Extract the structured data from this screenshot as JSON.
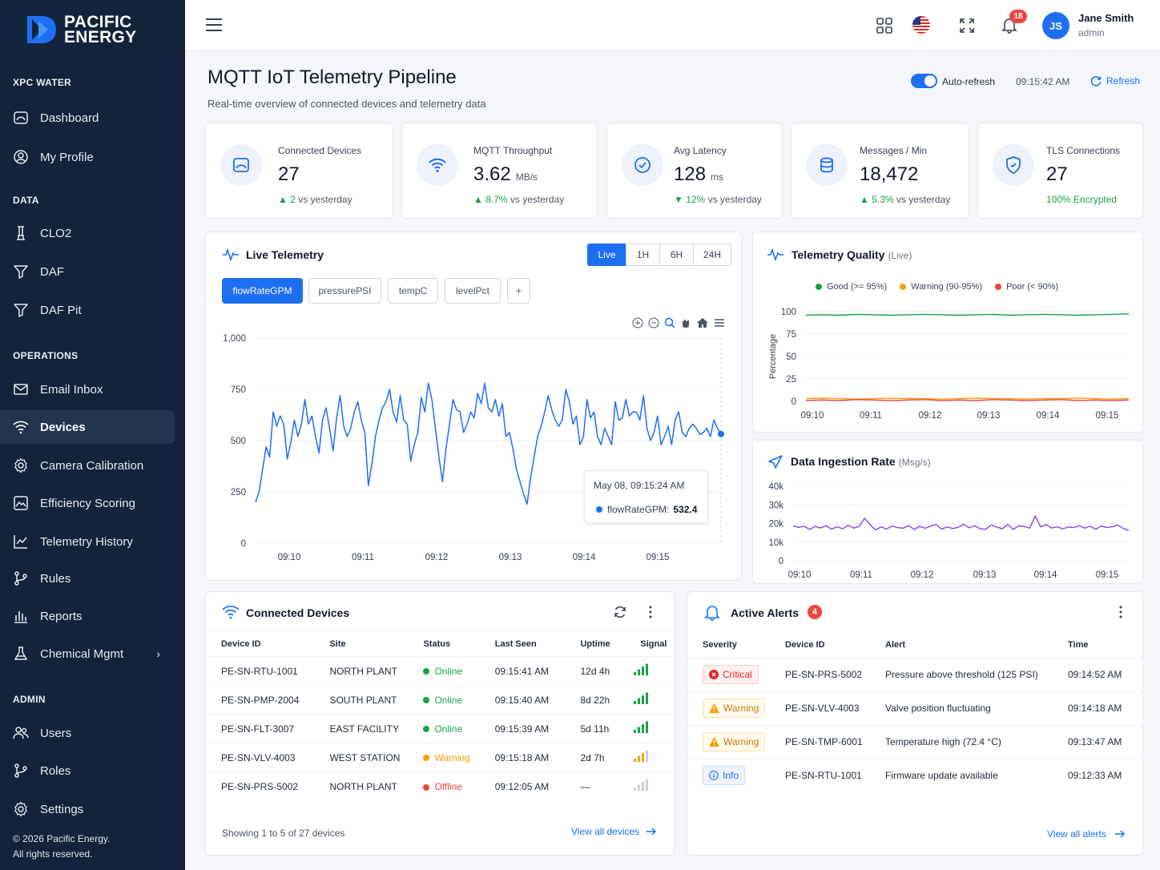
{
  "brand": {
    "line1": "PACIFIC",
    "line2": "ENERGY"
  },
  "sidebar": {
    "sections": [
      "XPC WATER",
      "DATA",
      "OPERATIONS",
      "ADMIN"
    ],
    "items": [
      {
        "label": "Dashboard",
        "icon": "dashboard-icon"
      },
      {
        "label": "My Profile",
        "icon": "user-circle-icon"
      },
      {
        "label": "CLO2",
        "icon": "flask-icon"
      },
      {
        "label": "DAF",
        "icon": "filter-icon"
      },
      {
        "label": "DAF Pit",
        "icon": "filter-icon"
      },
      {
        "label": "Email Inbox",
        "icon": "mail-icon"
      },
      {
        "label": "Devices",
        "icon": "wifi-icon"
      },
      {
        "label": "Camera Calibration",
        "icon": "gear-icon"
      },
      {
        "label": "Efficiency Scoring",
        "icon": "image-icon"
      },
      {
        "label": "Telemetry History",
        "icon": "chart-line-icon"
      },
      {
        "label": "Rules",
        "icon": "branch-icon"
      },
      {
        "label": "Reports",
        "icon": "bar-chart-icon"
      },
      {
        "label": "Chemical Mgmt",
        "icon": "beaker-icon"
      },
      {
        "label": "Users",
        "icon": "users-icon"
      },
      {
        "label": "Roles",
        "icon": "branch-icon"
      },
      {
        "label": "Settings",
        "icon": "gear-icon"
      }
    ],
    "active": "Devices",
    "copyright1": "© 2026 Pacific Energy.",
    "copyright2": "All rights reserved."
  },
  "topbar": {
    "notif_count": "18",
    "user_initials": "JS",
    "user_name": "Jane Smith",
    "user_role": "admin"
  },
  "page": {
    "title": "MQTT IoT Telemetry Pipeline",
    "subtitle": "Real-time overview of connected devices and telemetry data",
    "auto_refresh_label": "Auto-refresh",
    "auto_refresh_on": true,
    "time": "09:15:42 AM",
    "refresh_label": "Refresh"
  },
  "kpis": [
    {
      "label": "Connected Devices",
      "value": "27",
      "unit": "",
      "delta": "2",
      "delta_text": "vs yesterday",
      "dir": "up"
    },
    {
      "label": "MQTT Throughput",
      "value": "3.62",
      "unit": "MB/s",
      "delta": "8.7%",
      "delta_text": "vs yesterday",
      "dir": "up"
    },
    {
      "label": "Avg Latency",
      "value": "128",
      "unit": "ms",
      "delta": "12%",
      "delta_text": "vs yesterday",
      "dir": "down"
    },
    {
      "label": "Messages / Min",
      "value": "18,472",
      "unit": "",
      "delta": "5.3%",
      "delta_text": "vs yesterday",
      "dir": "up"
    },
    {
      "label": "TLS Connections",
      "value": "27",
      "unit": "",
      "delta": "100% Encrypted",
      "delta_text": "",
      "dir": "none"
    }
  ],
  "live": {
    "title": "Live Telemetry",
    "ranges": [
      "Live",
      "1H",
      "6H",
      "24H"
    ],
    "selected_range": "Live",
    "metrics": [
      "flowRateGPM",
      "pressurePSI",
      "tempC",
      "levelPct"
    ],
    "selected_metric": "flowRateGPM",
    "add": "+",
    "tooltip_time": "May 08, 09:15:24 AM",
    "tooltip_series": "flowRateGPM:",
    "tooltip_value": "532.4"
  },
  "quality": {
    "title": "Telemetry Quality",
    "tag": "(Live)",
    "legend": [
      {
        "label": "Good (>= 95%)",
        "color": "#16a34a"
      },
      {
        "label": "Warning (90-95%)",
        "color": "#f59e0b"
      },
      {
        "label": "Poor (< 90%)",
        "color": "#ef4444"
      }
    ]
  },
  "ingest": {
    "title": "Data Ingestion Rate",
    "unit": "(Msg/s)"
  },
  "chart_data": [
    {
      "type": "line",
      "title": "Live Telemetry",
      "series": [
        {
          "name": "flowRateGPM",
          "color": "#1d6ff2"
        }
      ],
      "x_labels": [
        "09:10",
        "09:11",
        "09:12",
        "09:13",
        "09:14",
        "09:15"
      ],
      "y_ticks": [
        "0",
        "250",
        "500",
        "750",
        "1,000"
      ],
      "ylim": [
        0,
        1000
      ],
      "values": [
        200,
        250,
        360,
        470,
        420,
        640,
        570,
        620,
        580,
        410,
        490,
        600,
        520,
        580,
        700,
        580,
        620,
        520,
        440,
        600,
        660,
        560,
        450,
        610,
        720,
        570,
        520,
        560,
        640,
        690,
        600,
        540,
        280,
        390,
        520,
        600,
        660,
        690,
        750,
        640,
        590,
        720,
        600,
        580,
        400,
        480,
        540,
        710,
        640,
        780,
        700,
        560,
        420,
        300,
        460,
        580,
        700,
        650,
        640,
        540,
        580,
        640,
        610,
        730,
        680,
        780,
        660,
        640,
        700,
        620,
        680,
        520,
        540,
        460,
        360,
        300,
        240,
        190,
        320,
        420,
        520,
        570,
        640,
        720,
        650,
        600,
        570,
        600,
        750,
        690,
        580,
        620,
        480,
        520,
        700,
        610,
        640,
        520,
        480,
        560,
        520,
        480,
        690,
        600,
        610,
        700,
        620,
        640,
        640,
        600,
        720,
        560,
        500,
        540,
        620,
        480,
        520,
        570,
        480,
        600,
        640,
        540,
        520,
        560,
        580,
        560,
        530,
        540,
        560,
        520,
        600,
        560,
        532
      ]
    },
    {
      "type": "line",
      "title": "Telemetry Quality",
      "ylabel": "Percentage",
      "x_labels": [
        "09:10",
        "09:11",
        "09:12",
        "09:13",
        "09:14",
        "09:15"
      ],
      "y_ticks": [
        "0",
        "25",
        "50",
        "75",
        "100"
      ],
      "ylim": [
        0,
        100
      ],
      "series": [
        {
          "name": "Good (>= 95%)",
          "color": "#16a34a",
          "values": [
            96,
            96.5,
            96,
            97,
            96.5,
            96,
            96.5,
            97,
            96.5,
            96,
            96.5,
            97,
            96,
            96.5,
            97,
            96.5,
            96,
            96.5,
            97,
            97.5
          ]
        },
        {
          "name": "Warning (90-95%)",
          "color": "#f59e0b",
          "values": [
            3,
            3.5,
            3,
            2.5,
            3,
            3.5,
            3,
            3,
            2.5,
            3,
            3.5,
            3,
            3,
            2.5,
            3,
            3,
            3.5,
            3,
            2.5,
            3
          ]
        },
        {
          "name": "Poor (< 90%)",
          "color": "#ef4444",
          "values": [
            1,
            1.5,
            1,
            2,
            1.5,
            1,
            1.5,
            2,
            1,
            1.5,
            1,
            2,
            1.5,
            1,
            1.5,
            2,
            1,
            1.5,
            1,
            1.5
          ]
        }
      ]
    },
    {
      "type": "line",
      "title": "Data Ingestion Rate",
      "x_labels": [
        "09:10",
        "09:11",
        "09:12",
        "09:13",
        "09:14",
        "09:15"
      ],
      "y_ticks": [
        "0",
        "10k",
        "20k",
        "30k",
        "40k"
      ],
      "ylim": [
        0,
        40000
      ],
      "series": [
        {
          "name": "Msg/s",
          "color": "#7c3aed",
          "values": [
            18800,
            17900,
            18600,
            16800,
            18500,
            17600,
            18900,
            16900,
            18300,
            17200,
            19100,
            17500,
            18400,
            22900,
            19300,
            16600,
            18200,
            17000,
            18700,
            17800,
            17500,
            18900,
            16800,
            18500,
            17400,
            18700,
            19400,
            17000,
            18200,
            17300,
            18000,
            19600,
            17700,
            18800,
            17200,
            16900,
            19200,
            18100,
            17200,
            19500,
            16800,
            18800,
            18400,
            17500,
            24000,
            18200,
            19400,
            17600,
            18300,
            17100,
            18200,
            17800,
            18900,
            17500,
            18600,
            16900,
            18700,
            17800,
            18300,
            19200,
            17400,
            16300
          ]
        }
      ]
    }
  ],
  "devices": {
    "title": "Connected Devices",
    "columns": [
      "Device ID",
      "Site",
      "Status",
      "Last Seen",
      "Uptime",
      "Signal"
    ],
    "rows": [
      {
        "id": "PE-SN-RTU-1001",
        "site": "NORTH PLANT",
        "status": "Online",
        "status_color": "#16a34a",
        "last": "09:15:41 AM",
        "uptime": "12d 4h",
        "signal": 4
      },
      {
        "id": "PE-SN-PMP-2004",
        "site": "SOUTH PLANT",
        "status": "Online",
        "status_color": "#16a34a",
        "last": "09:15:40 AM",
        "uptime": "8d 22h",
        "signal": 4
      },
      {
        "id": "PE-SN-FLT-3007",
        "site": "EAST FACILITY",
        "status": "Online",
        "status_color": "#16a34a",
        "last": "09:15:39 AM",
        "uptime": "5d 11h",
        "signal": 4
      },
      {
        "id": "PE-SN-VLV-4003",
        "site": "WEST STATION",
        "status": "Warning",
        "status_color": "#f59e0b",
        "last": "09:15:18 AM",
        "uptime": "2d 7h",
        "signal": 3
      },
      {
        "id": "PE-SN-PRS-5002",
        "site": "NORTH PLANT",
        "status": "Offline",
        "status_color": "#ef4444",
        "last": "09:12:05 AM",
        "uptime": "—",
        "signal": 0
      }
    ],
    "footer": "Showing 1 to 5 of 27 devices",
    "view_all": "View all devices"
  },
  "alerts": {
    "title": "Active Alerts",
    "count": "4",
    "columns": [
      "Severity",
      "Device ID",
      "Alert",
      "Time"
    ],
    "rows": [
      {
        "sev": "Critical",
        "cls": "crit",
        "device": "PE-SN-PRS-5002",
        "alert": "Pressure above threshold (125 PSI)",
        "time": "09:14:52 AM"
      },
      {
        "sev": "Warning",
        "cls": "warn",
        "device": "PE-SN-VLV-4003",
        "alert": "Valve position fluctuating",
        "time": "09:14:18 AM"
      },
      {
        "sev": "Warning",
        "cls": "warn",
        "device": "PE-SN-TMP-6001",
        "alert": "Temperature high (72.4 °C)",
        "time": "09:13:47 AM"
      },
      {
        "sev": "Info",
        "cls": "info",
        "device": "PE-SN-RTU-1001",
        "alert": "Firmware update available",
        "time": "09:12:33 AM"
      }
    ],
    "view_all": "View all alerts"
  }
}
